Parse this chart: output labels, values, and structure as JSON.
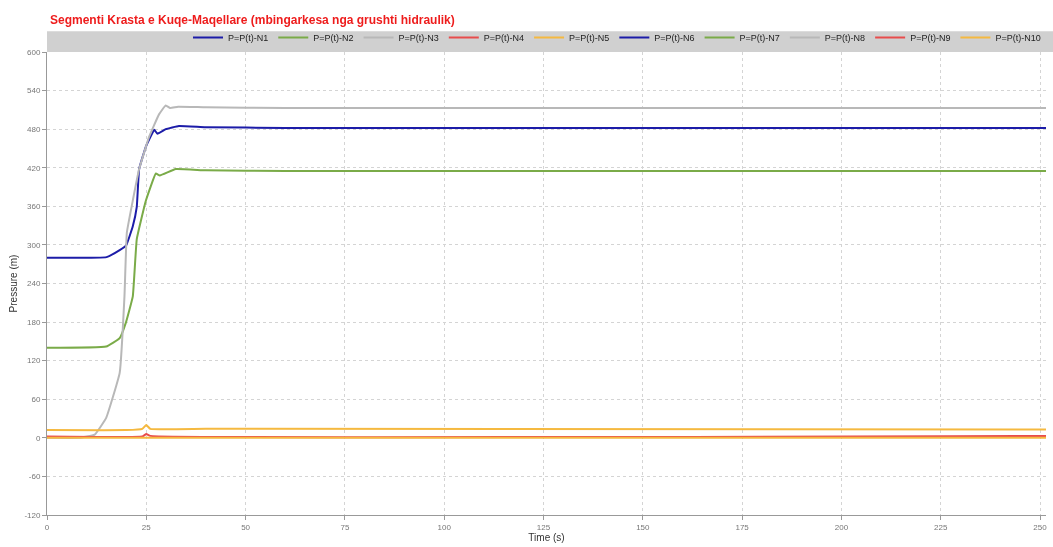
{
  "chart_data": {
    "type": "line",
    "title": "Segmenti Krasta e Kuqe-Maqellare (mbingarkesa nga grushti hidraulik)",
    "xlabel": "Time (s)",
    "ylabel": "Pressure (m)",
    "xlim": [
      0,
      251.5
    ],
    "xticks": [
      0,
      25,
      50,
      75,
      100,
      125,
      150,
      175,
      200,
      225,
      250
    ],
    "ylim": [
      -120,
      600
    ],
    "yticks": [
      -120,
      -60,
      0,
      60,
      120,
      180,
      240,
      300,
      360,
      420,
      480,
      540,
      600
    ],
    "grid": true,
    "legend": "top right",
    "line_style": "solid",
    "marker": "none",
    "series": [
      {
        "name": "P=P(t)-N1",
        "color": "#1c1ca8",
        "x": [
          0,
          15,
          18.3,
          19.9,
          21.6,
          22.6,
          23.2,
          24.9,
          27,
          27.8,
          29.9,
          33.2,
          39.9,
          60,
          251.5
        ],
        "values": [
          280,
          281,
          292,
          299,
          329,
          359,
          418,
          453,
          479,
          473,
          480,
          485,
          483,
          482,
          482
        ]
      },
      {
        "name": "P=P(t)-N2",
        "color": "#7aab48",
        "x": [
          0,
          14.9,
          18.3,
          19.9,
          21.6,
          22.6,
          24.9,
          27.4,
          28.4,
          32.4,
          39.9,
          60,
          251.5
        ],
        "values": [
          140,
          142,
          155,
          180,
          220,
          309,
          369,
          411,
          408,
          418,
          416,
          415,
          415
        ]
      },
      {
        "name": "P=P(t)-N3",
        "color": "#b8b8b8",
        "x": [
          0,
          8,
          12,
          14.9,
          18.3,
          19.5,
          20.1,
          21.6,
          23.2,
          25.7,
          28.2,
          29.9,
          31,
          33,
          40,
          60,
          251.5
        ],
        "values": [
          0,
          0,
          5,
          31,
          101,
          220,
          319,
          369,
          418,
          468,
          503,
          517,
          513,
          515,
          514,
          513,
          513
        ]
      },
      {
        "name": "P=P(t)-N4",
        "color": "#e84c4c",
        "x": [
          0,
          24,
          25,
          26,
          251.5
        ],
        "values": [
          2,
          2,
          6,
          3,
          3
        ]
      },
      {
        "name": "P=P(t)-N5",
        "color": "#f5b940",
        "x": [
          0,
          20,
          24,
          25,
          26,
          40,
          251.5
        ],
        "values": [
          12,
          12,
          14,
          20,
          14,
          14,
          13
        ]
      },
      {
        "name": "P=P(t)-N6",
        "color": "#1c1ca8"
      },
      {
        "name": "P=P(t)-N7",
        "color": "#7aab48"
      },
      {
        "name": "P=P(t)-N8",
        "color": "#b8b8b8"
      },
      {
        "name": "P=P(t)-N9",
        "color": "#e84c4c"
      },
      {
        "name": "P=P(t)-N10",
        "color": "#f5b940",
        "x": [
          0,
          251.5
        ],
        "values": [
          0,
          0
        ]
      }
    ]
  }
}
